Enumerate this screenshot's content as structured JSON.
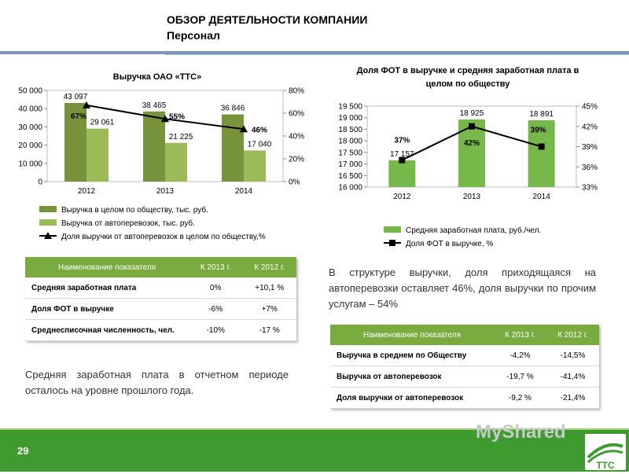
{
  "header": {
    "title": "ОБЗОР ДЕЯТЕЛЬНОСТИ КОМПАНИИ",
    "subtitle": "Персонал"
  },
  "chart_data": [
    {
      "type": "bar",
      "title": "Выручка ОАО «ТТС»",
      "categories": [
        "2012",
        "2013",
        "2014"
      ],
      "series": [
        {
          "name": "Выручка в целом по обществу, тыс. руб.",
          "values": [
            43097,
            38465,
            36846
          ],
          "labels": [
            "43 097",
            "38 465",
            "36 846"
          ],
          "color": "#77933c"
        },
        {
          "name": "Выручка от автоперевозок, тыс. руб.",
          "values": [
            29061,
            21225,
            17040
          ],
          "labels": [
            "29 061",
            "21 225",
            "17 040"
          ],
          "color": "#9bbb59"
        },
        {
          "name": "Доля выручки от  автоперевозок в целом по обществу,%",
          "type": "line",
          "axis": "right",
          "values": [
            67,
            55,
            46
          ],
          "labels": [
            "67%",
            "55%",
            "46%"
          ],
          "color": "#000000"
        }
      ],
      "y_left": {
        "ylim": [
          0,
          50000
        ],
        "ticks": [
          "0",
          "10 000",
          "20 000",
          "30 000",
          "40 000",
          "50 000"
        ]
      },
      "y_right": {
        "ylim": [
          0,
          80
        ],
        "ticks": [
          "0%",
          "20%",
          "40%",
          "60%",
          "80%"
        ]
      }
    },
    {
      "type": "bar",
      "title": "Доля ФОТ в выручке и средняя заработная плата в целом по обществу",
      "categories": [
        "2012",
        "2013",
        "2014"
      ],
      "series": [
        {
          "name": "Средняя заработная плата, руб./чел.",
          "values": [
            17157,
            18925,
            18891
          ],
          "labels": [
            "17 157",
            "18 925",
            "18 891"
          ],
          "color": "#77b84a"
        },
        {
          "name": "Доля ФОТ в выручке, %",
          "type": "line",
          "axis": "right",
          "values": [
            37,
            42,
            39
          ],
          "labels": [
            "37%",
            "42%",
            "39%"
          ],
          "color": "#000000"
        }
      ],
      "y_left": {
        "ylim": [
          16000,
          19500
        ],
        "ticks": [
          "16 000",
          "16 500",
          "17 000",
          "17 500",
          "18 000",
          "18 500",
          "19 000",
          "19 500"
        ]
      },
      "y_right": {
        "ylim": [
          33,
          45
        ],
        "ticks": [
          "33%",
          "36%",
          "39%",
          "42%",
          "45%"
        ]
      }
    }
  ],
  "table1": {
    "headers": [
      "Наименование показателя",
      "К 2013 г.",
      "К 2012 г."
    ],
    "rows": [
      [
        "Средняя заработная плата",
        "0%",
        "+10,1 %"
      ],
      [
        "Доля ФОТ в выручке",
        "-6%",
        "+7%"
      ],
      [
        "Среднесписочная численность, чел.",
        "-10%",
        "-17 %"
      ]
    ]
  },
  "table2": {
    "headers": [
      "Наименование показателя",
      "К 2013  г.",
      "К 2012 г."
    ],
    "rows": [
      [
        "Выручка в среднем по Обществу",
        "-4,2%",
        "-14,5%"
      ],
      [
        "Выручка от автоперевозок",
        "-19,7 %",
        "-41,4%"
      ],
      [
        "Доля выручки от автоперевозок",
        "-9,2 %",
        "-21,4%"
      ]
    ]
  },
  "text": {
    "right_paragraph": "В  структуре  выручки,  доля  приходящаяся  на автоперевозки оставляет 46%,  доля выручки по прочим услугам – 54%",
    "left_paragraph": "Средняя  заработная  плата  в  отчетном  периоде осталось на уровне прошлого года."
  },
  "footer": {
    "page_number": "29",
    "watermark": "MyShared",
    "logo_text": "ТТС"
  }
}
